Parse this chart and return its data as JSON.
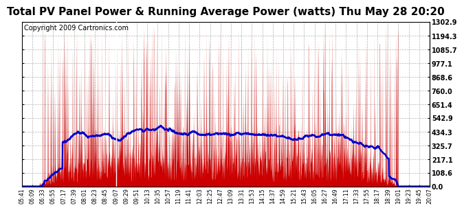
{
  "title": "Total PV Panel Power & Running Average Power (watts) Thu May 28 20:20",
  "copyright": "Copyright 2009 Cartronics.com",
  "ymax": 1302.9,
  "ytick_values": [
    0.0,
    108.6,
    217.1,
    325.7,
    434.3,
    542.9,
    651.4,
    760.0,
    868.6,
    977.1,
    1085.7,
    1194.3,
    1302.9
  ],
  "xtick_labels": [
    "05:41",
    "06:09",
    "06:33",
    "06:55",
    "07:17",
    "07:39",
    "08:01",
    "08:23",
    "08:45",
    "09:07",
    "09:29",
    "09:51",
    "10:13",
    "10:35",
    "10:57",
    "11:19",
    "11:41",
    "12:03",
    "12:25",
    "12:47",
    "13:09",
    "13:31",
    "13:53",
    "14:15",
    "14:37",
    "14:59",
    "15:21",
    "15:43",
    "16:05",
    "16:27",
    "16:49",
    "17:11",
    "17:33",
    "17:55",
    "18:17",
    "18:39",
    "19:01",
    "19:23",
    "19:45",
    "20:07"
  ],
  "background_color": "#ffffff",
  "fill_color": "#cc0000",
  "line_color": "#0000cc",
  "grid_color": "#aaaaaa",
  "title_fontsize": 11,
  "copyright_fontsize": 7,
  "vline_x_index": 9
}
